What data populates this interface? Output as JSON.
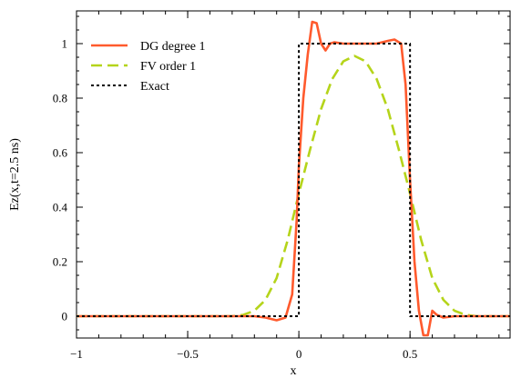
{
  "chart_data": {
    "type": "line",
    "title": "",
    "xlabel": "x",
    "ylabel": "Ez(x,t=2.5 ns)",
    "xlim": [
      -1,
      0.95
    ],
    "ylim": [
      -0.08,
      1.12
    ],
    "grid": false,
    "legend_position": "top-left",
    "x_ticks": [
      {
        "value": -1,
        "label": "−1"
      },
      {
        "value": -0.5,
        "label": "−0.5"
      },
      {
        "value": 0,
        "label": "0"
      },
      {
        "value": 0.5,
        "label": "0.5"
      }
    ],
    "y_ticks": [
      {
        "value": 0,
        "label": "0"
      },
      {
        "value": 0.2,
        "label": "0.2"
      },
      {
        "value": 0.4,
        "label": "0.4"
      },
      {
        "value": 0.6,
        "label": "0.6"
      },
      {
        "value": 0.8,
        "label": "0.8"
      },
      {
        "value": 1,
        "label": "1"
      }
    ],
    "series": [
      {
        "name": "DG degree 1",
        "color": "#ff5a2d",
        "style": "solid",
        "x": [
          -1,
          -0.3,
          -0.2,
          -0.15,
          -0.1,
          -0.06,
          -0.03,
          -0.01,
          0,
          0.02,
          0.04,
          0.06,
          0.08,
          0.1,
          0.12,
          0.14,
          0.16,
          0.2,
          0.25,
          0.3,
          0.35,
          0.4,
          0.43,
          0.46,
          0.48,
          0.5,
          0.52,
          0.54,
          0.56,
          0.58,
          0.6,
          0.62,
          0.65,
          0.7,
          0.8,
          0.95
        ],
        "y": [
          0,
          0,
          0,
          -0.005,
          -0.015,
          -0.005,
          0.08,
          0.35,
          0.55,
          0.8,
          0.96,
          1.08,
          1.075,
          1.0,
          0.975,
          1.0,
          1.005,
          1.0,
          1.0,
          1.0,
          1.0,
          1.01,
          1.015,
          1.0,
          0.85,
          0.5,
          0.2,
          0.02,
          -0.07,
          -0.07,
          0.02,
          0.005,
          -0.005,
          0,
          0,
          0
        ]
      },
      {
        "name": "FV  order 1",
        "color": "#b5d41a",
        "style": "dashed",
        "x": [
          -1,
          -0.3,
          -0.25,
          -0.2,
          -0.15,
          -0.1,
          -0.05,
          0,
          0.05,
          0.1,
          0.15,
          0.2,
          0.25,
          0.3,
          0.35,
          0.4,
          0.45,
          0.5,
          0.55,
          0.6,
          0.65,
          0.7,
          0.75,
          0.8,
          0.95
        ],
        "y": [
          0,
          0,
          0.005,
          0.02,
          0.06,
          0.14,
          0.28,
          0.45,
          0.61,
          0.76,
          0.87,
          0.935,
          0.955,
          0.935,
          0.87,
          0.76,
          0.61,
          0.45,
          0.28,
          0.14,
          0.06,
          0.02,
          0.005,
          0,
          0
        ]
      },
      {
        "name": "Exact",
        "color": "#000000",
        "style": "dotted",
        "x": [
          -1,
          0,
          0,
          0.5,
          0.5,
          0.95
        ],
        "y": [
          0,
          0,
          1,
          1,
          0,
          0
        ]
      }
    ]
  }
}
